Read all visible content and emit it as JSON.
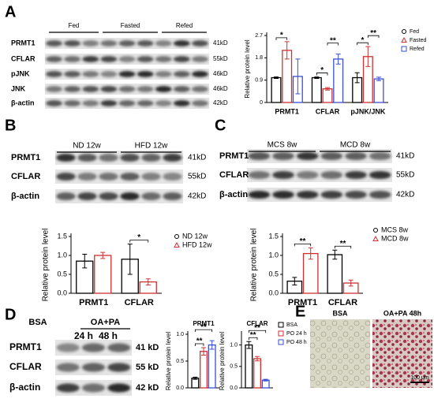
{
  "panel_labels": [
    "A",
    "B",
    "C",
    "D",
    "E"
  ],
  "blots": [
    {
      "groups": [
        "Fed",
        "Fasted",
        "Refed"
      ],
      "rows": [
        "PRMT1",
        "CFLAR",
        "pJNK",
        "JNK",
        "β-actin"
      ],
      "sizes": [
        "41kD",
        "55kD",
        "46kD",
        "46kD",
        "42kD"
      ]
    },
    {
      "groups": [
        "ND 12w",
        "HFD 12w"
      ],
      "rows": [
        "PRMT1",
        "CFLAR",
        "β-actin"
      ],
      "sizes": [
        "41kD",
        "55kD",
        "42kD"
      ]
    },
    {
      "groups": [
        "MCS 8w",
        "MCD 8w"
      ],
      "rows": [
        "PRMT1",
        "CFLAR",
        "β-actin"
      ],
      "sizes": [
        "41kD",
        "55kD",
        "42kD"
      ]
    },
    {
      "groups": [
        "BSA",
        "OA+PA"
      ],
      "subgroups": [
        "24 h",
        "48 h"
      ],
      "rows": [
        "PRMT1",
        "CFLAR",
        "β-actin"
      ],
      "sizes": [
        "41 kD",
        "55 kD",
        "42 kD"
      ]
    }
  ],
  "images": {
    "labels": [
      "BSA",
      "OA+PA 48h"
    ],
    "scale_bar": "100 μm"
  },
  "chart_data": [
    {
      "type": "bar",
      "ylabel": "Relative protein level",
      "categories": [
        "PRMT1",
        "CFLAR",
        "pJNK/JNK"
      ],
      "series": [
        {
          "name": "Fed",
          "color": "#000000",
          "marker": "circle",
          "values": [
            1.0,
            1.0,
            1.0
          ],
          "errors": [
            0.03,
            0.03,
            0.2
          ]
        },
        {
          "name": "Fasted",
          "color": "#d03030",
          "marker": "triangle",
          "values": [
            2.1,
            0.55,
            1.85
          ],
          "errors": [
            0.35,
            0.05,
            0.4
          ]
        },
        {
          "name": "Refed",
          "color": "#3a4fd0",
          "marker": "square",
          "values": [
            1.05,
            1.75,
            0.95
          ],
          "errors": [
            0.7,
            0.2,
            0.07
          ]
        }
      ],
      "ylim": [
        0,
        2.7
      ],
      "yticks": [
        0,
        0.9,
        1.8,
        2.7
      ],
      "annotations": [
        "*",
        "*",
        "**",
        "*",
        "**"
      ]
    },
    {
      "type": "bar",
      "ylabel": "Relative protein level",
      "categories": [
        "PRMT1",
        "CFLAR"
      ],
      "series": [
        {
          "name": "ND 12w",
          "color": "#000000",
          "marker": "circle",
          "values": [
            0.85,
            0.9
          ],
          "errors": [
            0.18,
            0.4
          ]
        },
        {
          "name": "HFD 12w",
          "color": "#d03030",
          "marker": "triangle",
          "values": [
            1.0,
            0.3
          ],
          "errors": [
            0.08,
            0.08
          ]
        }
      ],
      "ylim": [
        0,
        1.5
      ],
      "yticks": [
        {
          "value": 0,
          "label": "0.0"
        },
        0.5,
        {
          "value": 1,
          "label": "1.0"
        },
        1.5
      ],
      "annotations": [
        "*"
      ]
    },
    {
      "type": "bar",
      "ylabel": "Relative protein level",
      "categories": [
        "PRMT1",
        "CFLAR"
      ],
      "series": [
        {
          "name": "MCS 8w",
          "color": "#000000",
          "marker": "circle",
          "values": [
            0.32,
            1.02
          ],
          "errors": [
            0.1,
            0.12
          ]
        },
        {
          "name": "MCD 8w",
          "color": "#d03030",
          "marker": "triangle",
          "values": [
            1.05,
            0.27
          ],
          "errors": [
            0.15,
            0.08
          ]
        }
      ],
      "ylim": [
        0,
        1.5
      ],
      "yticks": [
        {
          "value": 0,
          "label": "0.0"
        },
        0.5,
        {
          "value": 1,
          "label": "1.0"
        },
        1.5
      ],
      "annotations": [
        "**",
        "**"
      ]
    },
    {
      "type": "bar",
      "title": "PRMT1",
      "ylabel": "Relative protein level",
      "series": [
        {
          "color": "#000000",
          "values": [
            0.18
          ],
          "errors": [
            0.02
          ]
        },
        {
          "color": "#d03030",
          "values": [
            0.68
          ],
          "errors": [
            0.07
          ]
        },
        {
          "color": "#3a4fd0",
          "values": [
            0.8
          ],
          "errors": [
            0.08
          ]
        }
      ],
      "ylim": [
        0,
        1.0
      ],
      "yticks": [
        {
          "value": 0,
          "label": "0.0"
        },
        0.5,
        {
          "value": 1,
          "label": "1.0"
        }
      ],
      "annotations": [
        "**",
        "**"
      ]
    },
    {
      "type": "bar",
      "title": "CFLAR",
      "ylabel": "Relative protein level",
      "series": [
        {
          "name": "BSA",
          "color": "#000000",
          "marker": "square",
          "values": [
            1.0
          ],
          "errors": [
            0.08
          ]
        },
        {
          "name": "PO 24 h",
          "color": "#d03030",
          "marker": "square",
          "values": [
            0.68
          ],
          "errors": [
            0.05
          ]
        },
        {
          "name": "PO 48 h",
          "color": "#3a4fd0",
          "marker": "square",
          "values": [
            0.18
          ],
          "errors": [
            0.02
          ]
        }
      ],
      "ylim": [
        0,
        1.25
      ],
      "yticks": [
        {
          "value": 0,
          "label": "0.0"
        },
        0.5,
        {
          "value": 1,
          "label": "1.0"
        }
      ],
      "annotations": [
        "**",
        "**"
      ]
    }
  ]
}
